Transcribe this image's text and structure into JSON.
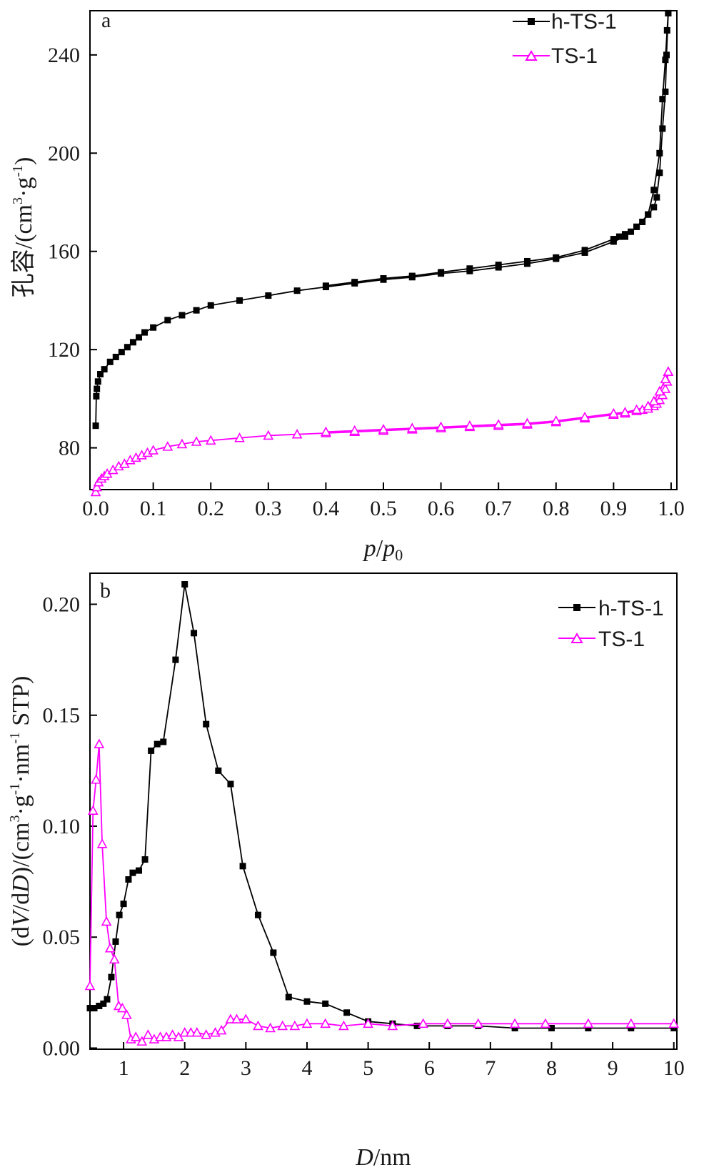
{
  "chart_data": [
    {
      "panel": "a",
      "type": "line",
      "xlabel": "p/p0",
      "xlabel_parts": {
        "p1": "p",
        "slash": "/",
        "p2": "p",
        "sub": "0"
      },
      "ylabel": "孔容/(cm³·g⁻¹)",
      "ylabel_parts": {
        "main": "孔容/(cm",
        "sup1": "3",
        "mid": "·g",
        "sup2": "-1",
        "end": ")"
      },
      "xlim": [
        -0.01,
        1.01
      ],
      "ylim": [
        63,
        258
      ],
      "xticks": [
        0.0,
        0.1,
        0.2,
        0.3,
        0.4,
        0.5,
        0.6,
        0.7,
        0.8,
        0.9,
        1.0
      ],
      "xtick_labels": [
        "0.0",
        "0.1",
        "0.2",
        "0.3",
        "0.4",
        "0.5",
        "0.6",
        "0.7",
        "0.8",
        "0.9",
        "1.0"
      ],
      "yticks": [
        80,
        120,
        160,
        200,
        240
      ],
      "ytick_labels": [
        "80",
        "120",
        "160",
        "200",
        "240"
      ],
      "legend_position": "top-right",
      "series": [
        {
          "name": "h-TS-1",
          "color": "#000000",
          "marker": "square",
          "branches": [
            {
              "x": [
                0.0,
                0.001,
                0.002,
                0.004,
                0.008,
                0.015,
                0.025,
                0.035,
                0.045,
                0.055,
                0.065,
                0.075,
                0.085,
                0.1,
                0.125,
                0.15,
                0.175,
                0.2,
                0.25,
                0.3,
                0.35,
                0.4,
                0.45,
                0.5,
                0.55,
                0.6,
                0.65,
                0.7,
                0.75,
                0.8,
                0.85,
                0.9,
                0.92,
                0.94,
                0.96,
                0.97,
                0.98,
                0.985,
                0.99,
                0.993,
                0.995
              ],
              "y": [
                89,
                101,
                104,
                107,
                110,
                112,
                115,
                117,
                119,
                121,
                123,
                125,
                127,
                129,
                132,
                134,
                136,
                138,
                140,
                142,
                144,
                145.5,
                147,
                148.5,
                149.5,
                151,
                152,
                153.5,
                155,
                157,
                159.5,
                164,
                166,
                170,
                175,
                185,
                200,
                222,
                238,
                250,
                257
              ]
            },
            {
              "x": [
                0.995,
                0.992,
                0.99,
                0.985,
                0.98,
                0.975,
                0.97,
                0.96,
                0.95,
                0.94,
                0.93,
                0.92,
                0.91,
                0.9,
                0.85,
                0.8,
                0.75,
                0.7,
                0.65,
                0.6,
                0.55,
                0.5,
                0.45,
                0.4
              ],
              "y": [
                257,
                240,
                225,
                210,
                192,
                182,
                178,
                175,
                172,
                170,
                168,
                167,
                166,
                165,
                160.5,
                157.5,
                156,
                154.5,
                153,
                151.5,
                150,
                149,
                147.5,
                146
              ]
            }
          ]
        },
        {
          "name": "TS-1",
          "color": "#ff00ff",
          "marker": "triangle-open",
          "branches": [
            {
              "x": [
                0.0,
                0.002,
                0.005,
                0.01,
                0.015,
                0.02,
                0.03,
                0.04,
                0.05,
                0.06,
                0.07,
                0.08,
                0.09,
                0.1,
                0.125,
                0.15,
                0.175,
                0.2,
                0.25,
                0.3,
                0.35,
                0.4,
                0.45,
                0.5,
                0.55,
                0.6,
                0.65,
                0.7,
                0.75,
                0.8,
                0.85,
                0.9,
                0.92,
                0.94,
                0.95,
                0.96,
                0.97,
                0.975,
                0.98,
                0.985,
                0.99,
                0.993,
                0.995
              ],
              "y": [
                62,
                64,
                66,
                67.5,
                68.5,
                69.5,
                71,
                72.5,
                73.5,
                75,
                76,
                77,
                78,
                79,
                80.5,
                81.5,
                82.5,
                83,
                84,
                85,
                85.5,
                86,
                86.5,
                87,
                87.5,
                88,
                88.5,
                89,
                89.5,
                90.5,
                92,
                93.5,
                94,
                95,
                95.5,
                96,
                97,
                98,
                99.5,
                101.5,
                104,
                107,
                111
              ]
            },
            {
              "x": [
                0.995,
                0.99,
                0.98,
                0.97,
                0.96,
                0.94,
                0.92,
                0.9,
                0.85,
                0.8,
                0.75,
                0.7,
                0.65,
                0.6,
                0.55,
                0.5,
                0.45,
                0.4
              ],
              "y": [
                111,
                108,
                103,
                99,
                97,
                95.5,
                94.5,
                94,
                92.5,
                91,
                90,
                89.5,
                89,
                88.5,
                88,
                87.5,
                87,
                86.5
              ]
            }
          ]
        }
      ]
    },
    {
      "panel": "b",
      "type": "line",
      "xlabel": "D/nm",
      "xlabel_parts": {
        "d": "D",
        "unit": "/nm"
      },
      "ylabel": "(dV/dD)/(cm³·g⁻¹·nm⁻¹ STP)",
      "ylabel_parts": {
        "p1": "(d",
        "v": "V",
        "p2": "/d",
        "d": "D",
        "p3": ")/(cm",
        "sup1": "3",
        "p4": "·g",
        "sup2": "-1",
        "p5": "·nm",
        "sup3": "-1",
        "p6": " STP)"
      },
      "xlim": [
        0.45,
        10.05
      ],
      "ylim": [
        -0.0005,
        0.214
      ],
      "xticks": [
        1,
        2,
        3,
        4,
        5,
        6,
        7,
        8,
        9,
        10
      ],
      "xtick_labels": [
        "1",
        "2",
        "3",
        "4",
        "5",
        "6",
        "7",
        "8",
        "9",
        "10"
      ],
      "yticks": [
        0.0,
        0.05,
        0.1,
        0.15,
        0.2
      ],
      "ytick_labels": [
        "0.00",
        "0.05",
        "0.10",
        "0.15",
        "0.20"
      ],
      "legend_position": "top-right",
      "series": [
        {
          "name": "h-TS-1",
          "color": "#000000",
          "marker": "square",
          "x": [
            0.45,
            0.52,
            0.6,
            0.67,
            0.73,
            0.8,
            0.87,
            0.93,
            1.0,
            1.08,
            1.15,
            1.25,
            1.35,
            1.45,
            1.55,
            1.65,
            1.85,
            2.0,
            2.15,
            2.35,
            2.55,
            2.75,
            2.95,
            3.2,
            3.45,
            3.7,
            4.0,
            4.3,
            4.65,
            5.0,
            5.4,
            5.8,
            6.3,
            6.8,
            7.4,
            8.0,
            8.6,
            9.3,
            10.0
          ],
          "y": [
            0.018,
            0.018,
            0.019,
            0.02,
            0.022,
            0.032,
            0.048,
            0.06,
            0.065,
            0.076,
            0.079,
            0.08,
            0.085,
            0.134,
            0.137,
            0.138,
            0.175,
            0.209,
            0.187,
            0.146,
            0.125,
            0.119,
            0.082,
            0.06,
            0.043,
            0.023,
            0.021,
            0.02,
            0.016,
            0.012,
            0.011,
            0.01,
            0.01,
            0.01,
            0.009,
            0.009,
            0.009,
            0.009,
            0.009
          ]
        },
        {
          "name": "TS-1",
          "color": "#ff00ff",
          "marker": "triangle-open",
          "x": [
            0.45,
            0.5,
            0.55,
            0.6,
            0.65,
            0.72,
            0.78,
            0.85,
            0.92,
            0.98,
            1.05,
            1.12,
            1.2,
            1.3,
            1.4,
            1.5,
            1.6,
            1.7,
            1.8,
            1.9,
            2.0,
            2.1,
            2.2,
            2.35,
            2.5,
            2.6,
            2.75,
            2.85,
            3.0,
            3.2,
            3.4,
            3.6,
            3.8,
            4.0,
            4.3,
            4.6,
            5.0,
            5.4,
            5.9,
            6.3,
            6.8,
            7.4,
            7.9,
            8.6,
            9.3,
            10.0
          ],
          "y": [
            0.028,
            0.107,
            0.121,
            0.137,
            0.092,
            0.057,
            0.045,
            0.04,
            0.019,
            0.018,
            0.015,
            0.004,
            0.005,
            0.003,
            0.006,
            0.004,
            0.005,
            0.005,
            0.006,
            0.005,
            0.007,
            0.007,
            0.007,
            0.006,
            0.007,
            0.008,
            0.013,
            0.013,
            0.013,
            0.01,
            0.009,
            0.01,
            0.01,
            0.011,
            0.011,
            0.01,
            0.011,
            0.01,
            0.011,
            0.011,
            0.011,
            0.011,
            0.011,
            0.011,
            0.011,
            0.011
          ]
        }
      ]
    }
  ]
}
